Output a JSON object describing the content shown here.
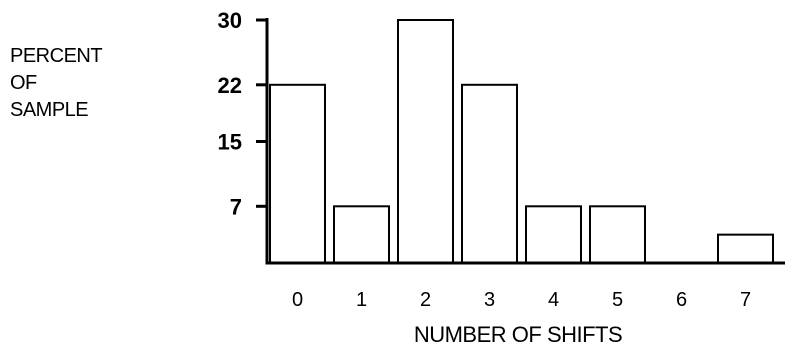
{
  "chart_data": {
    "type": "bar",
    "categories": [
      "0",
      "1",
      "2",
      "3",
      "4",
      "5",
      "6",
      "7"
    ],
    "values": [
      22,
      7,
      30,
      22,
      7,
      7,
      0,
      3.5
    ],
    "yticks": [
      7,
      15,
      22,
      30
    ],
    "ylim": [
      0,
      30
    ],
    "ylabel_lines": [
      "PERCENT",
      "OF",
      "SAMPLE"
    ],
    "xlabel": "NUMBER OF SHIFTS",
    "title": "",
    "grid": false,
    "colors": {
      "bar_fill": "#ffffff",
      "bar_stroke": "#000000",
      "axis": "#000000"
    }
  }
}
